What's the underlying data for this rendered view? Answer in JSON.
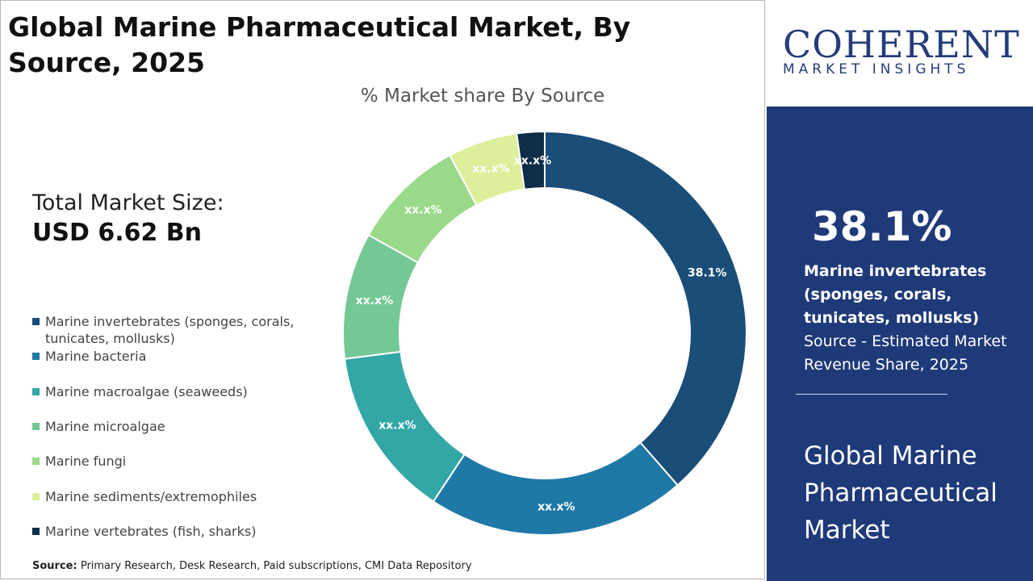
{
  "title": "Global Marine Pharmaceutical Market, By Source, 2025",
  "total_market": {
    "label": "Total Market Size:",
    "value": "USD 6.62 Bn"
  },
  "source": {
    "label": "Source:",
    "text": "Primary Research, Desk Research, Paid subscriptions, CMI Data Repository"
  },
  "brand": {
    "name": "COHERENT",
    "tagline": "MARKET INSIGHTS"
  },
  "highlight": {
    "percent": "38.1%",
    "segment": "Marine invertebrates (sponges, corals, tunicates, mollusks)",
    "note": "Source - Estimated Market Revenue Share, 2025",
    "market": "Global Marine Pharmaceutical Market"
  },
  "colors": {
    "panel": "#1f3a79",
    "brand": "#243c7a"
  },
  "chart_data": {
    "type": "pie",
    "title": "% Market share By Source",
    "donut": true,
    "categories": [
      "Marine invertebrates (sponges, corals, tunicates, mollusks)",
      "Marine bacteria",
      "Marine macroalgae (seaweeds)",
      "Marine microalgae",
      "Marine fungi",
      "Marine sediments/extremophiles",
      "Marine vertebrates (fish, sharks)"
    ],
    "values": [
      38.1,
      20.5,
      13.5,
      10.0,
      9.0,
      5.5,
      2.2
    ],
    "labels": [
      "38.1%",
      "xx.x%",
      "xx.x%",
      "xx.x%",
      "xx.x%",
      "xx.x%",
      "xx.x%"
    ],
    "colors": [
      "#1a4d78",
      "#1f79a7",
      "#33a7a5",
      "#74c895",
      "#9bd98a",
      "#dcef9a",
      "#0d2d48"
    ],
    "legend_position": "left"
  }
}
